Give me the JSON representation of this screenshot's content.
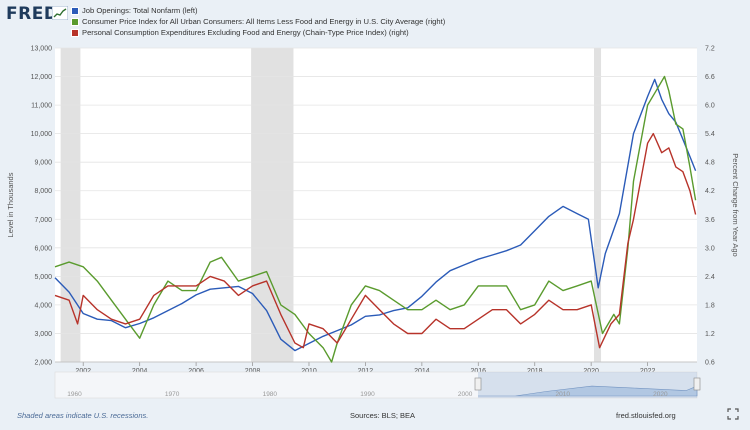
{
  "brand": {
    "logo_text": "FRED"
  },
  "legend": [
    {
      "label": "Job Openings: Total Nonfarm (left)",
      "color": "#2b5bb8"
    },
    {
      "label": "Consumer Price Index for All Urban Consumers: All Items Less Food and Energy in U.S. City Average (right)",
      "color": "#5a9b2e"
    },
    {
      "label": "Personal Consumption Expenditures Excluding Food and Energy (Chain-Type Price Index) (right)",
      "color": "#b7332a"
    }
  ],
  "footer": {
    "note": "Shaded areas indicate U.S. recessions.",
    "sources": "Sources: BLS; BEA",
    "site": "fred.stlouisfed.org"
  },
  "chart_data": {
    "type": "line",
    "x_ticks": [
      "2002",
      "2004",
      "2006",
      "2008",
      "2010",
      "2012",
      "2014",
      "2016",
      "2018",
      "2020",
      "2022"
    ],
    "x_range": [
      2001.0,
      2023.75
    ],
    "ylabel_left": "Level in Thousands",
    "ylabel_right": "Percent Change from Year Ago",
    "y_left_ticks": [
      "2,000",
      "3,000",
      "4,000",
      "5,000",
      "6,000",
      "7,000",
      "8,000",
      "9,000",
      "10,000",
      "11,000",
      "12,000",
      "13,000"
    ],
    "y_left_range": [
      2000,
      13000
    ],
    "y_right_ticks": [
      "0.6",
      "1.2",
      "1.8",
      "2.4",
      "3.0",
      "3.6",
      "4.2",
      "4.8",
      "5.4",
      "6.0",
      "6.6",
      "7.2"
    ],
    "y_right_range": [
      0.6,
      7.2
    ],
    "recessions": [
      [
        2001.2,
        2001.9
      ],
      [
        2007.95,
        2009.45
      ],
      [
        2020.1,
        2020.35
      ]
    ],
    "grid": true,
    "series": [
      {
        "name": "Job Openings: Total Nonfarm (left)",
        "axis": "left",
        "color": "#2b5bb8",
        "points": [
          [
            2001.0,
            4950
          ],
          [
            2001.5,
            4450
          ],
          [
            2002.0,
            3700
          ],
          [
            2002.5,
            3500
          ],
          [
            2003.0,
            3450
          ],
          [
            2003.5,
            3200
          ],
          [
            2004.0,
            3350
          ],
          [
            2004.5,
            3550
          ],
          [
            2005.0,
            3800
          ],
          [
            2005.5,
            4050
          ],
          [
            2006.0,
            4350
          ],
          [
            2006.5,
            4550
          ],
          [
            2007.0,
            4600
          ],
          [
            2007.5,
            4650
          ],
          [
            2008.0,
            4400
          ],
          [
            2008.5,
            3800
          ],
          [
            2009.0,
            2800
          ],
          [
            2009.5,
            2400
          ],
          [
            2010.0,
            2650
          ],
          [
            2010.5,
            2900
          ],
          [
            2011.0,
            3100
          ],
          [
            2011.5,
            3300
          ],
          [
            2012.0,
            3600
          ],
          [
            2012.5,
            3650
          ],
          [
            2013.0,
            3800
          ],
          [
            2013.5,
            3900
          ],
          [
            2014.0,
            4300
          ],
          [
            2014.5,
            4800
          ],
          [
            2015.0,
            5200
          ],
          [
            2015.5,
            5400
          ],
          [
            2016.0,
            5600
          ],
          [
            2016.5,
            5750
          ],
          [
            2017.0,
            5900
          ],
          [
            2017.5,
            6100
          ],
          [
            2018.0,
            6600
          ],
          [
            2018.5,
            7100
          ],
          [
            2019.0,
            7450
          ],
          [
            2019.5,
            7200
          ],
          [
            2019.9,
            7000
          ],
          [
            2020.25,
            4600
          ],
          [
            2020.5,
            5800
          ],
          [
            2021.0,
            7200
          ],
          [
            2021.5,
            10000
          ],
          [
            2022.0,
            11300
          ],
          [
            2022.25,
            11900
          ],
          [
            2022.5,
            11200
          ],
          [
            2022.75,
            10700
          ],
          [
            2023.0,
            10400
          ],
          [
            2023.25,
            9800
          ],
          [
            2023.5,
            9200
          ],
          [
            2023.7,
            8700
          ]
        ]
      },
      {
        "name": "Consumer Price Index for All Urban Consumers: All Items Less Food and Energy in U.S. City Average (right)",
        "axis": "right",
        "color": "#5a9b2e",
        "points": [
          [
            2001.0,
            2.6
          ],
          [
            2001.5,
            2.7
          ],
          [
            2002.0,
            2.6
          ],
          [
            2002.5,
            2.3
          ],
          [
            2003.0,
            1.9
          ],
          [
            2003.5,
            1.5
          ],
          [
            2004.0,
            1.1
          ],
          [
            2004.5,
            1.8
          ],
          [
            2005.0,
            2.3
          ],
          [
            2005.5,
            2.1
          ],
          [
            2006.0,
            2.1
          ],
          [
            2006.5,
            2.7
          ],
          [
            2006.9,
            2.8
          ],
          [
            2007.5,
            2.3
          ],
          [
            2008.0,
            2.4
          ],
          [
            2008.5,
            2.5
          ],
          [
            2009.0,
            1.8
          ],
          [
            2009.5,
            1.6
          ],
          [
            2010.0,
            1.2
          ],
          [
            2010.5,
            0.9
          ],
          [
            2010.8,
            0.6
          ],
          [
            2011.0,
            1.0
          ],
          [
            2011.5,
            1.8
          ],
          [
            2012.0,
            2.2
          ],
          [
            2012.5,
            2.1
          ],
          [
            2013.0,
            1.9
          ],
          [
            2013.5,
            1.7
          ],
          [
            2014.0,
            1.7
          ],
          [
            2014.5,
            1.9
          ],
          [
            2015.0,
            1.7
          ],
          [
            2015.5,
            1.8
          ],
          [
            2016.0,
            2.2
          ],
          [
            2016.5,
            2.2
          ],
          [
            2017.0,
            2.2
          ],
          [
            2017.5,
            1.7
          ],
          [
            2018.0,
            1.8
          ],
          [
            2018.5,
            2.3
          ],
          [
            2019.0,
            2.1
          ],
          [
            2019.5,
            2.2
          ],
          [
            2020.0,
            2.3
          ],
          [
            2020.4,
            1.2
          ],
          [
            2020.8,
            1.6
          ],
          [
            2021.0,
            1.4
          ],
          [
            2021.3,
            3.0
          ],
          [
            2021.5,
            4.4
          ],
          [
            2022.0,
            6.0
          ],
          [
            2022.3,
            6.3
          ],
          [
            2022.6,
            6.6
          ],
          [
            2022.75,
            6.3
          ],
          [
            2023.0,
            5.6
          ],
          [
            2023.25,
            5.5
          ],
          [
            2023.5,
            4.7
          ],
          [
            2023.7,
            4.0
          ]
        ]
      },
      {
        "name": "Personal Consumption Expenditures Excluding Food and Energy (Chain-Type Price Index) (right)",
        "axis": "right",
        "color": "#b7332a",
        "points": [
          [
            2001.0,
            2.0
          ],
          [
            2001.5,
            1.9
          ],
          [
            2001.8,
            1.4
          ],
          [
            2002.0,
            2.0
          ],
          [
            2002.5,
            1.7
          ],
          [
            2003.0,
            1.5
          ],
          [
            2003.5,
            1.4
          ],
          [
            2004.0,
            1.5
          ],
          [
            2004.5,
            2.0
          ],
          [
            2005.0,
            2.2
          ],
          [
            2005.5,
            2.2
          ],
          [
            2006.0,
            2.2
          ],
          [
            2006.5,
            2.4
          ],
          [
            2007.0,
            2.3
          ],
          [
            2007.5,
            2.0
          ],
          [
            2008.0,
            2.2
          ],
          [
            2008.5,
            2.3
          ],
          [
            2009.0,
            1.6
          ],
          [
            2009.5,
            1.0
          ],
          [
            2009.8,
            0.9
          ],
          [
            2010.0,
            1.4
          ],
          [
            2010.5,
            1.3
          ],
          [
            2011.0,
            1.0
          ],
          [
            2011.5,
            1.5
          ],
          [
            2012.0,
            2.0
          ],
          [
            2012.5,
            1.7
          ],
          [
            2013.0,
            1.4
          ],
          [
            2013.5,
            1.2
          ],
          [
            2014.0,
            1.2
          ],
          [
            2014.5,
            1.5
          ],
          [
            2015.0,
            1.3
          ],
          [
            2015.5,
            1.3
          ],
          [
            2016.0,
            1.5
          ],
          [
            2016.5,
            1.7
          ],
          [
            2017.0,
            1.7
          ],
          [
            2017.5,
            1.4
          ],
          [
            2018.0,
            1.6
          ],
          [
            2018.5,
            1.9
          ],
          [
            2019.0,
            1.7
          ],
          [
            2019.5,
            1.7
          ],
          [
            2020.0,
            1.8
          ],
          [
            2020.3,
            0.9
          ],
          [
            2020.7,
            1.4
          ],
          [
            2021.0,
            1.6
          ],
          [
            2021.3,
            3.1
          ],
          [
            2021.5,
            3.6
          ],
          [
            2022.0,
            5.2
          ],
          [
            2022.2,
            5.4
          ],
          [
            2022.5,
            5.0
          ],
          [
            2022.75,
            5.1
          ],
          [
            2023.0,
            4.7
          ],
          [
            2023.25,
            4.6
          ],
          [
            2023.5,
            4.2
          ],
          [
            2023.7,
            3.7
          ]
        ]
      }
    ],
    "navigator": {
      "ticks": [
        "1960",
        "1970",
        "1980",
        "1990",
        "2000",
        "2010",
        "2020"
      ]
    }
  }
}
